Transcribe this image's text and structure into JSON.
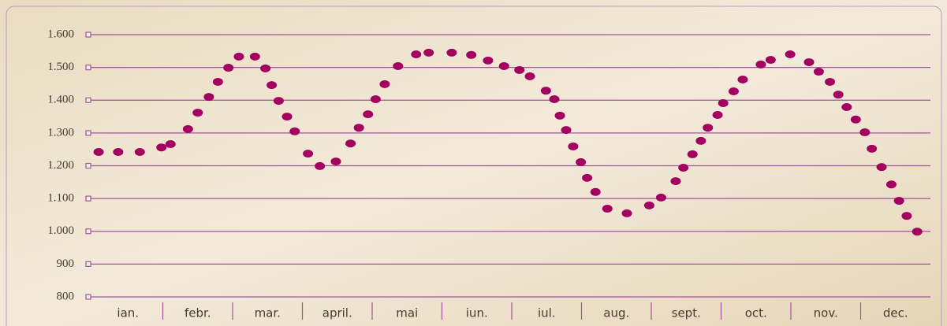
{
  "chart_data": {
    "type": "dot-line",
    "categories": [
      "ian.",
      "febr.",
      "mar.",
      "april.",
      "mai",
      "iun.",
      "iul.",
      "aug.",
      "sept.",
      "oct.",
      "nov.",
      "dec."
    ],
    "x": [
      0.08,
      0.36,
      0.67,
      0.98,
      1.11,
      1.36,
      1.5,
      1.66,
      1.79,
      1.94,
      2.09,
      2.32,
      2.47,
      2.56,
      2.66,
      2.78,
      2.89,
      3.08,
      3.25,
      3.48,
      3.69,
      3.81,
      3.94,
      4.05,
      4.18,
      4.37,
      4.63,
      4.81,
      5.14,
      5.42,
      5.66,
      5.89,
      6.11,
      6.26,
      6.49,
      6.61,
      6.69,
      6.78,
      6.88,
      6.99,
      7.08,
      7.2,
      7.37,
      7.65,
      7.97,
      8.14,
      8.35,
      8.46,
      8.59,
      8.71,
      8.81,
      8.95,
      9.03,
      9.18,
      9.31,
      9.57,
      9.71,
      9.99,
      10.26,
      10.4,
      10.56,
      10.68,
      10.8,
      10.93,
      11.06,
      11.16,
      11.3,
      11.44,
      11.55,
      11.66,
      11.81
    ],
    "values": [
      1242,
      1242,
      1242,
      1256,
      1266,
      1312,
      1362,
      1410,
      1456,
      1499,
      1533,
      1533,
      1497,
      1446,
      1398,
      1350,
      1305,
      1237,
      1199,
      1213,
      1268,
      1316,
      1357,
      1403,
      1449,
      1504,
      1540,
      1545,
      1545,
      1538,
      1521,
      1504,
      1492,
      1473,
      1429,
      1403,
      1353,
      1309,
      1259,
      1211,
      1163,
      1120,
      1069,
      1055,
      1079,
      1103,
      1153,
      1194,
      1235,
      1276,
      1316,
      1355,
      1391,
      1427,
      1463,
      1509,
      1523,
      1540,
      1516,
      1487,
      1456,
      1417,
      1379,
      1341,
      1302,
      1252,
      1196,
      1143,
      1093,
      1047,
      999
    ],
    "color": "#a3005f",
    "xlim": [
      0,
      12
    ],
    "ylim": [
      800,
      1600
    ],
    "yticks": [
      {
        "value": 800,
        "label": "800"
      },
      {
        "value": 900,
        "label": "900"
      },
      {
        "value": 1000,
        "label": "1.000"
      },
      {
        "value": 1100,
        "label": "1.100"
      },
      {
        "value": 1200,
        "label": "1.200"
      },
      {
        "value": 1300,
        "label": "1.300"
      },
      {
        "value": 1400,
        "label": "1.400"
      },
      {
        "value": 1500,
        "label": "1.500"
      },
      {
        "value": 1600,
        "label": "1.600"
      }
    ],
    "grid": true
  }
}
